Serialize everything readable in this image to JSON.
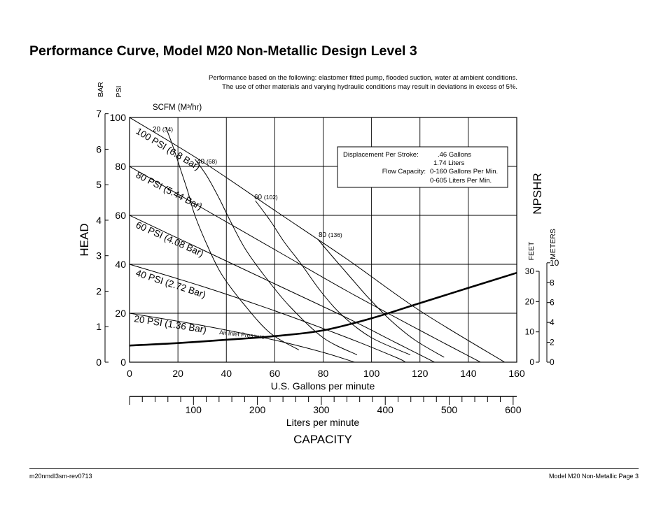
{
  "page": {
    "title": "Performance Curve, Model M20 Non-Metallic Design Level 3",
    "note_line1": "Performance based on the following: elastomer fitted pump, flooded suction, water at ambient conditions.",
    "note_line2": "The use of other materials and varying hydraulic conditions may result in deviations in excess of 5%.",
    "footer_left": "m20nmdl3sm-rev0713",
    "footer_right": "Model M20 Non-Metallic Page 3"
  },
  "info_box": {
    "displacement_label": "Displacement Per Stroke:",
    "displacement_gal": ".46 Gallons",
    "displacement_l": "1.74 Liters",
    "flow_label": "Flow Capacity:",
    "flow_gpm": "0-160 Gallons Per Min.",
    "flow_lpm": "0-605 Liters Per Min."
  },
  "chart_data": {
    "type": "line",
    "xlabel": "U.S. Gallons per minute",
    "x2label": "Liters per minute",
    "capacity_label": "CAPACITY",
    "ylabel": "HEAD",
    "y_unit_psi": "PSI",
    "y_unit_bar": "BAR",
    "npshr_label": "NPSHR",
    "npshr_unit_feet": "FEET",
    "npshr_unit_meters": "METERS",
    "scfm_label": "SCFM (M³/hr)",
    "air_inlet_label": "Air Inlet Pressure",
    "xlim": [
      0,
      160
    ],
    "ylim": [
      0,
      100
    ],
    "x_ticks": [
      "0",
      "20",
      "40",
      "60",
      "80",
      "100",
      "120",
      "140",
      "160"
    ],
    "y_ticks_psi": [
      "0",
      "20",
      "40",
      "60",
      "80",
      "100"
    ],
    "y_ticks_bar": [
      "0",
      "1",
      "2",
      "3",
      "4",
      "5",
      "6",
      "7"
    ],
    "lpm_ticks": [
      "100",
      "200",
      "300",
      "400",
      "500",
      "600"
    ],
    "npshr_feet_ticks": [
      "0",
      "10",
      "20",
      "30"
    ],
    "npshr_meters_ticks": [
      "0",
      "2",
      "4",
      "6",
      "8",
      "10"
    ],
    "grid": true,
    "pressure_curves": [
      {
        "name": "100 PSI (6.8 Bar)",
        "points": [
          [
            0,
            100
          ],
          [
            30,
            82
          ],
          [
            60,
            62
          ],
          [
            90,
            42
          ],
          [
            120,
            21
          ],
          [
            155,
            0
          ]
        ]
      },
      {
        "name": "80 PSI (5.44 Bar)",
        "points": [
          [
            0,
            80
          ],
          [
            30,
            63
          ],
          [
            60,
            46
          ],
          [
            90,
            29
          ],
          [
            120,
            13
          ],
          [
            145,
            0
          ]
        ]
      },
      {
        "name": "60 PSI (4.08 Bar)",
        "points": [
          [
            0,
            60
          ],
          [
            30,
            46
          ],
          [
            60,
            32
          ],
          [
            90,
            18
          ],
          [
            110,
            8
          ],
          [
            126,
            0
          ]
        ]
      },
      {
        "name": "40 PSI (2.72 Bar)",
        "points": [
          [
            0,
            40
          ],
          [
            30,
            31
          ],
          [
            60,
            21
          ],
          [
            90,
            10
          ],
          [
            110,
            2
          ],
          [
            114,
            0
          ]
        ]
      },
      {
        "name": "20 PSI (1.36 Bar)",
        "points": [
          [
            0,
            20
          ],
          [
            30,
            15
          ],
          [
            60,
            9
          ],
          [
            80,
            4
          ],
          [
            93,
            0
          ]
        ]
      }
    ],
    "scfm_curves": [
      {
        "name": "20 (34)",
        "points": [
          [
            15,
            96
          ],
          [
            18,
            88
          ],
          [
            21,
            79
          ],
          [
            24,
            70
          ],
          [
            27,
            60
          ],
          [
            32,
            48
          ],
          [
            38,
            36
          ],
          [
            47,
            24
          ],
          [
            58,
            12
          ],
          [
            70,
            5
          ]
        ]
      },
      {
        "name": "40 (68)",
        "points": [
          [
            27,
            83
          ],
          [
            32,
            76
          ],
          [
            37,
            67
          ],
          [
            42,
            57
          ],
          [
            48,
            46
          ],
          [
            56,
            35
          ],
          [
            66,
            23
          ],
          [
            80,
            10
          ],
          [
            94,
            3
          ]
        ]
      },
      {
        "name": "60 (102)",
        "points": [
          [
            52,
            66
          ],
          [
            58,
            58
          ],
          [
            64,
            49
          ],
          [
            71,
            40
          ],
          [
            79,
            29
          ],
          [
            88,
            19
          ],
          [
            100,
            10
          ],
          [
            116,
            3
          ]
        ]
      },
      {
        "name": "80 (136)",
        "points": [
          [
            78,
            50
          ],
          [
            84,
            43
          ],
          [
            91,
            35
          ],
          [
            99,
            26
          ],
          [
            108,
            17
          ],
          [
            118,
            9
          ],
          [
            130,
            2
          ]
        ]
      }
    ],
    "npshr_curve": {
      "name": "NPSHR",
      "points": [
        [
          0,
          5.5
        ],
        [
          20,
          6.3
        ],
        [
          40,
          7.4
        ],
        [
          60,
          8.6
        ],
        [
          80,
          10.5
        ],
        [
          100,
          14.5
        ],
        [
          120,
          19.5
        ],
        [
          140,
          24.5
        ],
        [
          160,
          29.5
        ]
      ]
    }
  }
}
